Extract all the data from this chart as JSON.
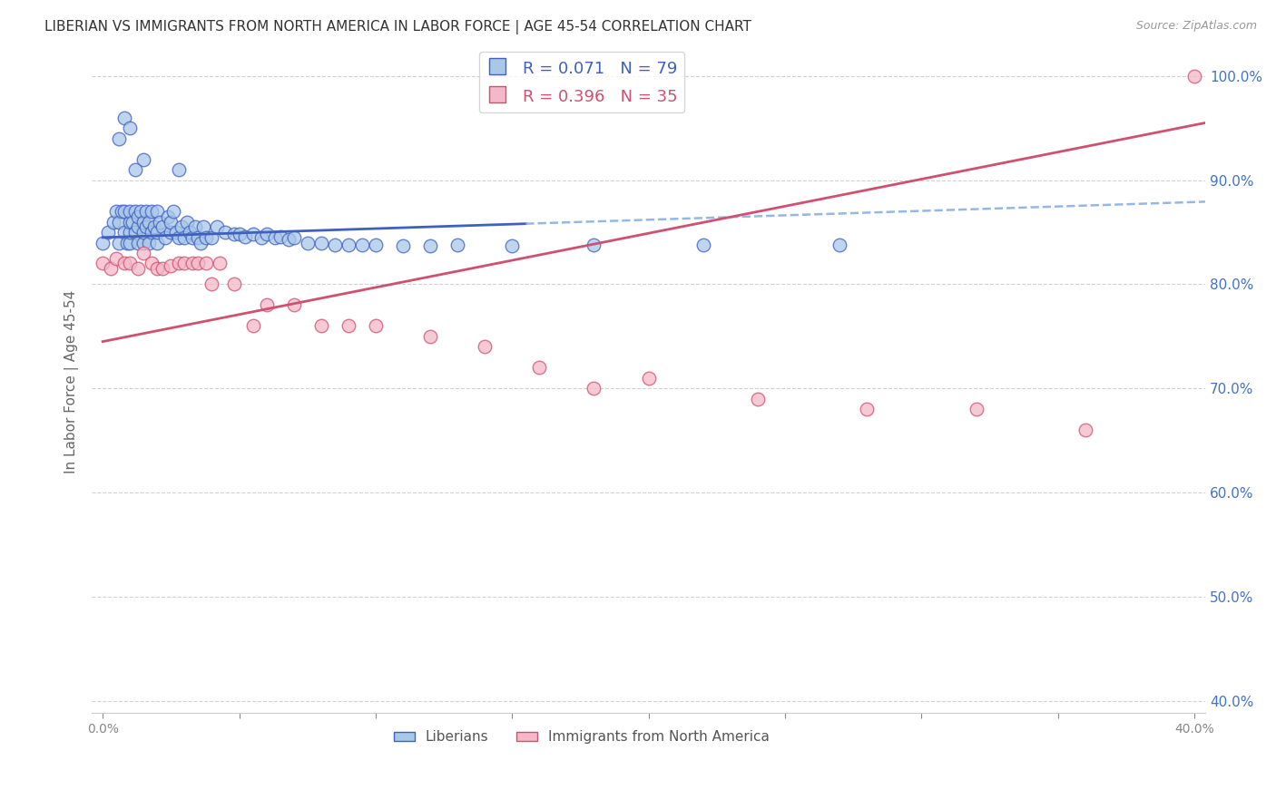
{
  "title": "LIBERIAN VS IMMIGRANTS FROM NORTH AMERICA IN LABOR FORCE | AGE 45-54 CORRELATION CHART",
  "source": "Source: ZipAtlas.com",
  "ylabel": "In Labor Force | Age 45-54",
  "r_liberian": 0.071,
  "n_liberian": 79,
  "r_immigrant": 0.396,
  "n_immigrant": 35,
  "color_liberian": "#a8c8e8",
  "color_immigrant": "#f4b8c8",
  "trend_liberian": "#4060c0",
  "trend_immigrant": "#d05070",
  "dashed_line_color": "#8ab0e0",
  "xmin": -0.004,
  "xmax": 0.404,
  "ymin": 0.388,
  "ymax": 1.025,
  "liberian_x": [
    0.0,
    0.002,
    0.004,
    0.005,
    0.006,
    0.006,
    0.007,
    0.008,
    0.008,
    0.009,
    0.01,
    0.01,
    0.01,
    0.01,
    0.011,
    0.012,
    0.012,
    0.013,
    0.013,
    0.013,
    0.014,
    0.015,
    0.015,
    0.015,
    0.016,
    0.016,
    0.017,
    0.017,
    0.018,
    0.018,
    0.019,
    0.02,
    0.02,
    0.02,
    0.021,
    0.022,
    0.023,
    0.024,
    0.025,
    0.025,
    0.026,
    0.027,
    0.028,
    0.029,
    0.03,
    0.031,
    0.032,
    0.033,
    0.034,
    0.035,
    0.036,
    0.037,
    0.038,
    0.04,
    0.042,
    0.045,
    0.048,
    0.05,
    0.052,
    0.055,
    0.058,
    0.06,
    0.063,
    0.065,
    0.068,
    0.07,
    0.075,
    0.08,
    0.085,
    0.09,
    0.095,
    0.1,
    0.11,
    0.12,
    0.13,
    0.15,
    0.18,
    0.22,
    0.27
  ],
  "liberian_y": [
    0.84,
    0.85,
    0.86,
    0.87,
    0.84,
    0.86,
    0.87,
    0.85,
    0.87,
    0.84,
    0.84,
    0.85,
    0.86,
    0.87,
    0.86,
    0.85,
    0.87,
    0.84,
    0.855,
    0.865,
    0.87,
    0.84,
    0.85,
    0.86,
    0.87,
    0.855,
    0.84,
    0.86,
    0.85,
    0.87,
    0.855,
    0.84,
    0.85,
    0.87,
    0.86,
    0.855,
    0.845,
    0.865,
    0.85,
    0.86,
    0.87,
    0.85,
    0.845,
    0.855,
    0.845,
    0.86,
    0.85,
    0.845,
    0.855,
    0.845,
    0.84,
    0.855,
    0.845,
    0.845,
    0.855,
    0.85,
    0.848,
    0.848,
    0.846,
    0.848,
    0.845,
    0.848,
    0.845,
    0.846,
    0.843,
    0.845,
    0.84,
    0.84,
    0.838,
    0.838,
    0.838,
    0.838,
    0.837,
    0.837,
    0.838,
    0.837,
    0.838,
    0.838,
    0.838
  ],
  "liberian_x_high": [
    0.006,
    0.008,
    0.01,
    0.028,
    0.015,
    0.012
  ],
  "liberian_y_high": [
    0.94,
    0.96,
    0.95,
    0.91,
    0.92,
    0.91
  ],
  "immigrant_x": [
    0.0,
    0.003,
    0.005,
    0.008,
    0.01,
    0.013,
    0.015,
    0.018,
    0.02,
    0.022,
    0.025,
    0.028,
    0.03,
    0.033,
    0.035,
    0.038,
    0.04,
    0.043,
    0.048,
    0.055,
    0.06,
    0.07,
    0.08,
    0.09,
    0.1,
    0.12,
    0.14,
    0.16,
    0.18,
    0.2,
    0.24,
    0.28,
    0.32,
    0.36,
    0.4
  ],
  "immigrant_y": [
    0.82,
    0.815,
    0.825,
    0.82,
    0.82,
    0.815,
    0.83,
    0.82,
    0.815,
    0.815,
    0.818,
    0.82,
    0.82,
    0.82,
    0.82,
    0.82,
    0.8,
    0.82,
    0.8,
    0.76,
    0.78,
    0.78,
    0.76,
    0.76,
    0.76,
    0.75,
    0.74,
    0.72,
    0.7,
    0.71,
    0.69,
    0.68,
    0.68,
    0.66,
    1.0
  ],
  "legend_entries": [
    "Liberians",
    "Immigrants from North America"
  ],
  "background_color": "#ffffff",
  "grid_color": "#cccccc",
  "title_color": "#333333",
  "axis_label_color": "#666666",
  "right_axis_color": "#4472c4",
  "title_fontsize": 11,
  "source_fontsize": 9
}
